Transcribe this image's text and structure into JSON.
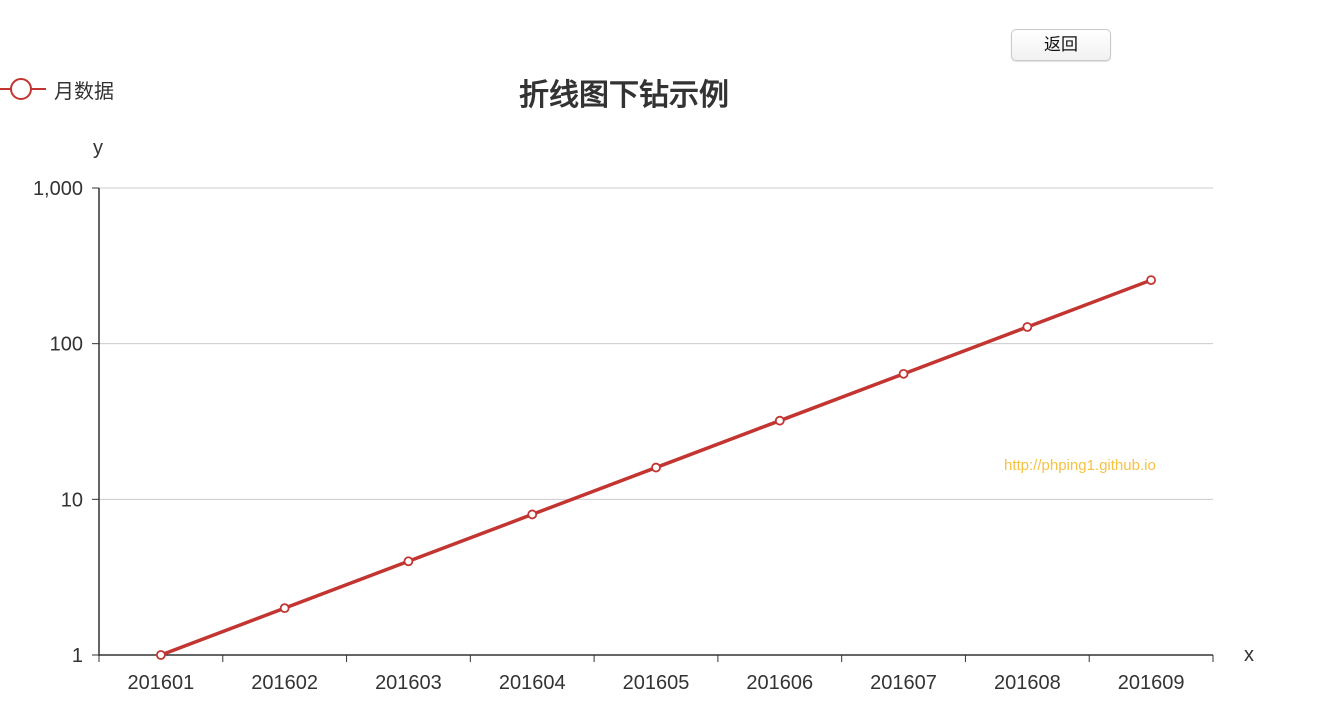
{
  "toolbar": {
    "back_label": "返回"
  },
  "watermark": "http://phping1.github.io",
  "chart_data": {
    "type": "line",
    "title": "折线图下钻示例",
    "xlabel": "x",
    "ylabel": "y",
    "yscale": "log",
    "ylim": [
      1,
      1000
    ],
    "yticks": [
      1,
      10,
      100,
      1000
    ],
    "ytick_labels": [
      "1",
      "10",
      "100",
      "1,000"
    ],
    "categories": [
      "201601",
      "201602",
      "201603",
      "201604",
      "201605",
      "201606",
      "201607",
      "201608",
      "201609"
    ],
    "series": [
      {
        "name": "月数据",
        "values": [
          1,
          2,
          4,
          8,
          16,
          32,
          64,
          128,
          256
        ]
      }
    ],
    "legend_position": "top-left",
    "grid": true,
    "colors": {
      "line": "#c23531",
      "grid": "#cccccc",
      "axis": "#333333",
      "point_fill": "#ffffff"
    }
  }
}
